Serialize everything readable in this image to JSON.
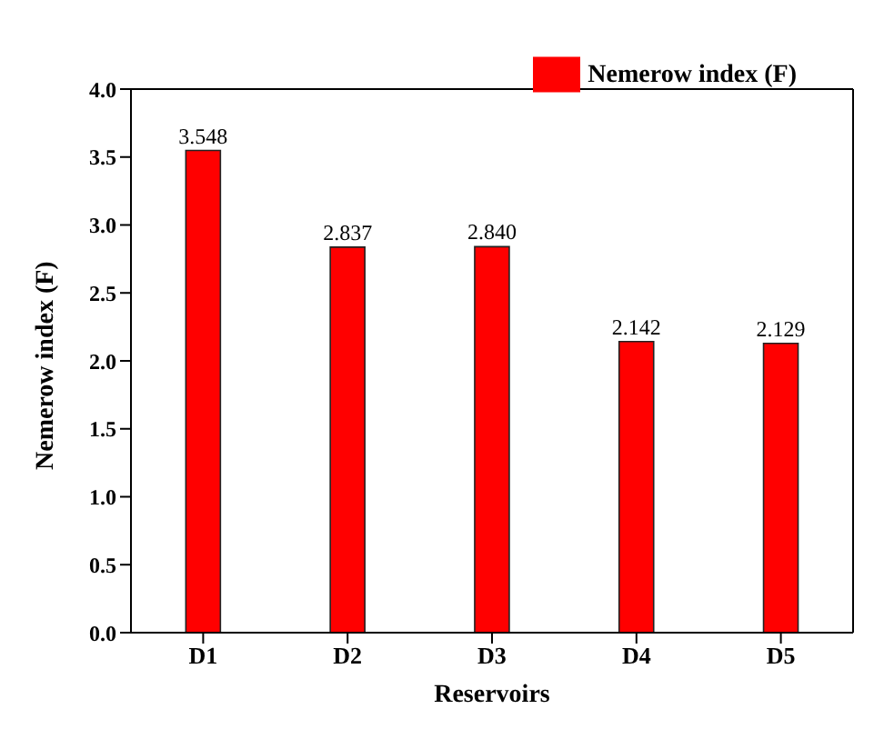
{
  "chart_data": {
    "type": "bar",
    "xlabel": "Reservoirs",
    "ylabel": "Nemerow index (F)",
    "categories": [
      "D1",
      "D2",
      "D3",
      "D4",
      "D5"
    ],
    "series": [
      {
        "name": "Nemerow index (F)",
        "color": "#ff0000",
        "values": [
          3.548,
          2.837,
          2.84,
          2.142,
          2.129
        ],
        "value_labels": [
          "3.548",
          "2.837",
          "2.840",
          "2.142",
          "2.129"
        ]
      }
    ],
    "ylim": [
      0,
      4
    ],
    "yticks": [
      {
        "value": 0,
        "label": "0.0"
      },
      {
        "value": 0.5,
        "label": "0.5"
      },
      {
        "value": 1,
        "label": "1.0"
      },
      {
        "value": 1.5,
        "label": "1.5"
      },
      {
        "value": 2,
        "label": "2.0"
      },
      {
        "value": 2.5,
        "label": "2.5"
      },
      {
        "value": 3,
        "label": "3.0"
      },
      {
        "value": 3.5,
        "label": "3.5"
      },
      {
        "value": 4,
        "label": "4.0"
      }
    ],
    "legend": "top right"
  }
}
